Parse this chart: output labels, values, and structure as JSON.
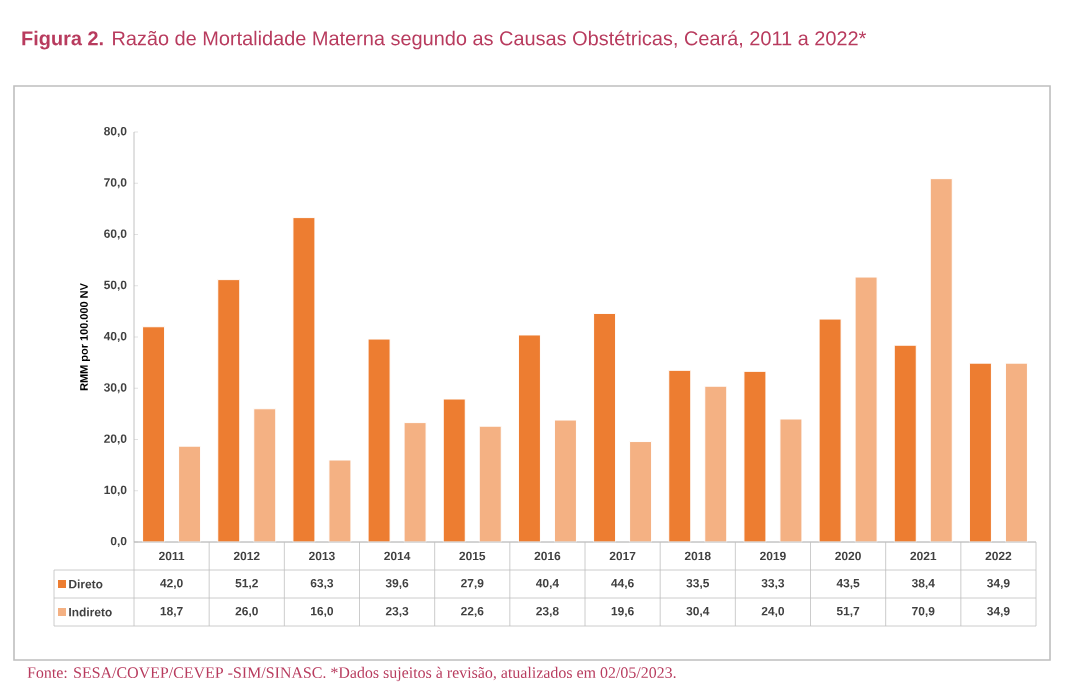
{
  "chart_data": {
    "type": "bar",
    "title": "**Figura 2.** Razão de Mortalidade Materna segundo as Causas Obstétricas, Ceará, 2011 a 2022*",
    "ylabel": "RMM por 100.000 NV",
    "categories": [
      "2011",
      "2012",
      "2013",
      "2014",
      "2015",
      "2016",
      "2017",
      "2018",
      "2019",
      "2020",
      "2021",
      "2022"
    ],
    "series": [
      {
        "name": "Direto",
        "color": "#ed7d31",
        "values": [
          42.0,
          51.2,
          63.3,
          39.6,
          27.9,
          40.4,
          44.6,
          33.5,
          33.3,
          43.5,
          38.4,
          34.9
        ],
        "value_labels": [
          "42,0",
          "51,2",
          "63,3",
          "39,6",
          "27,9",
          "40,4",
          "44,6",
          "33,5",
          "33,3",
          "43,5",
          "38,4",
          "34,9"
        ]
      },
      {
        "name": "Indireto",
        "color": "#f4b183",
        "values": [
          18.7,
          26.0,
          16.0,
          23.3,
          22.6,
          23.8,
          19.6,
          30.4,
          24.0,
          51.7,
          70.9,
          34.9
        ],
        "value_labels": [
          "18,7",
          "26,0",
          "16,0",
          "23,3",
          "22,6",
          "23,8",
          "19,6",
          "30,4",
          "24,0",
          "51,7",
          "70,9",
          "34,9"
        ]
      }
    ],
    "ylim": [
      0,
      80
    ],
    "yticks": [
      {
        "value": 0,
        "label": "0,0"
      },
      {
        "value": 10,
        "label": "10,0"
      },
      {
        "value": 20,
        "label": "20,0"
      },
      {
        "value": 30,
        "label": "30,0"
      },
      {
        "value": 40,
        "label": "40,0"
      },
      {
        "value": 50,
        "label": "50,0"
      },
      {
        "value": 60,
        "label": "60,0"
      },
      {
        "value": 70,
        "label": "70,0"
      },
      {
        "value": 80,
        "label": "80,0"
      }
    ],
    "legend": "bottom left",
    "annotations": [
      "Fonte: SESA/COVEP/CEVEP -SIM/SINASC. *Dados sujeitos à revisão, atualizados em 02/05/2023."
    ]
  }
}
